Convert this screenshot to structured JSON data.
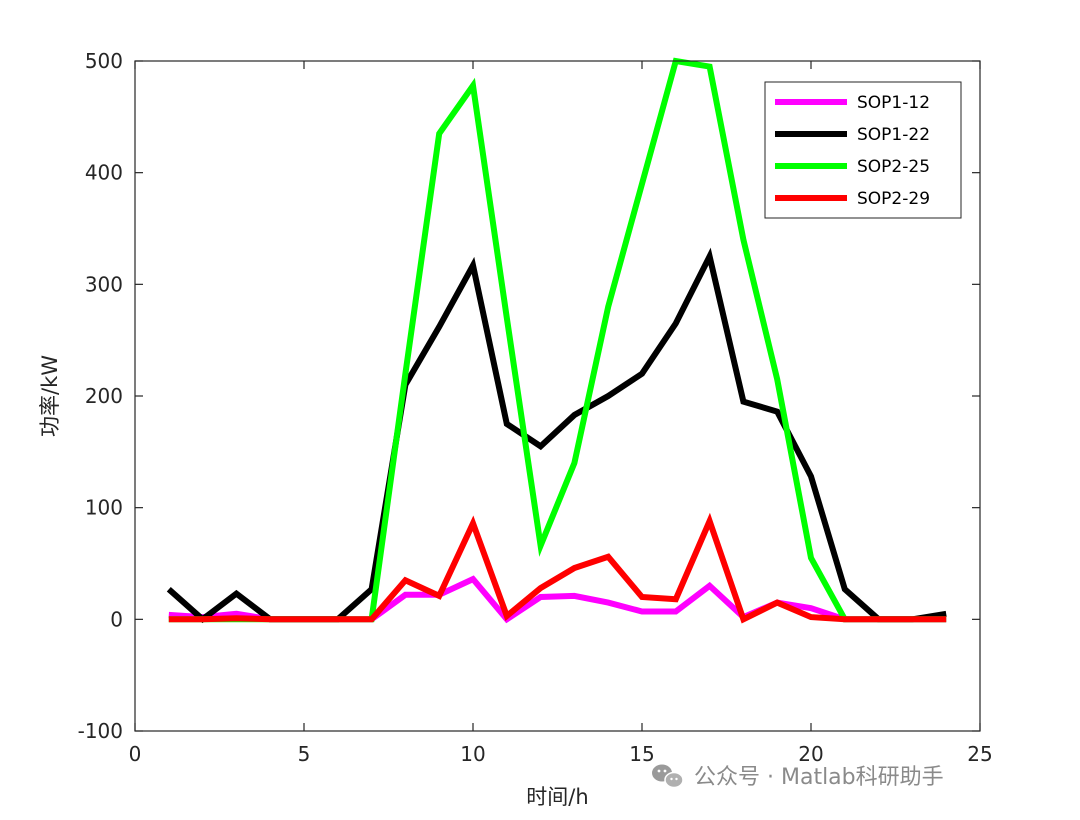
{
  "chart_data": {
    "type": "line",
    "xlabel": "时间/h",
    "ylabel": "功率/kW",
    "xlim": [
      0,
      25
    ],
    "ylim": [
      -100,
      500
    ],
    "xticks": [
      0,
      5,
      10,
      15,
      20,
      25
    ],
    "yticks": [
      -100,
      0,
      100,
      200,
      300,
      400,
      500
    ],
    "grid": false,
    "legend_position": "top-right",
    "x": [
      1,
      2,
      3,
      4,
      5,
      6,
      7,
      8,
      9,
      10,
      11,
      12,
      13,
      14,
      15,
      16,
      17,
      18,
      19,
      20,
      21,
      22,
      23,
      24
    ],
    "series": [
      {
        "name": "SOP1-12",
        "color": "#ff00ff",
        "values": [
          4,
          2,
          5,
          0,
          0,
          0,
          0,
          22,
          22,
          36,
          0,
          20,
          21,
          15,
          7,
          7,
          30,
          2,
          15,
          10,
          0,
          0,
          0,
          0
        ]
      },
      {
        "name": "SOP1-22",
        "color": "#000000",
        "values": [
          27,
          0,
          23,
          0,
          0,
          0,
          27,
          210,
          262,
          317,
          175,
          155,
          183,
          200,
          220,
          265,
          325,
          195,
          186,
          128,
          27,
          0,
          0,
          5
        ]
      },
      {
        "name": "SOP2-25",
        "color": "#00ff00",
        "values": [
          0,
          0,
          0,
          0,
          0,
          0,
          0,
          220,
          435,
          478,
          270,
          66,
          140,
          280,
          390,
          500,
          495,
          340,
          215,
          55,
          0,
          0,
          0,
          0
        ]
      },
      {
        "name": "SOP2-29",
        "color": "#ff0000",
        "values": [
          0,
          0,
          1,
          0,
          0,
          0,
          0,
          35,
          21,
          86,
          3,
          28,
          46,
          56,
          20,
          18,
          88,
          0,
          15,
          2,
          0,
          0,
          0,
          0
        ]
      }
    ]
  },
  "watermark": {
    "text": "公众号 · Matlab科研助手",
    "icon": "wechat-icon"
  }
}
